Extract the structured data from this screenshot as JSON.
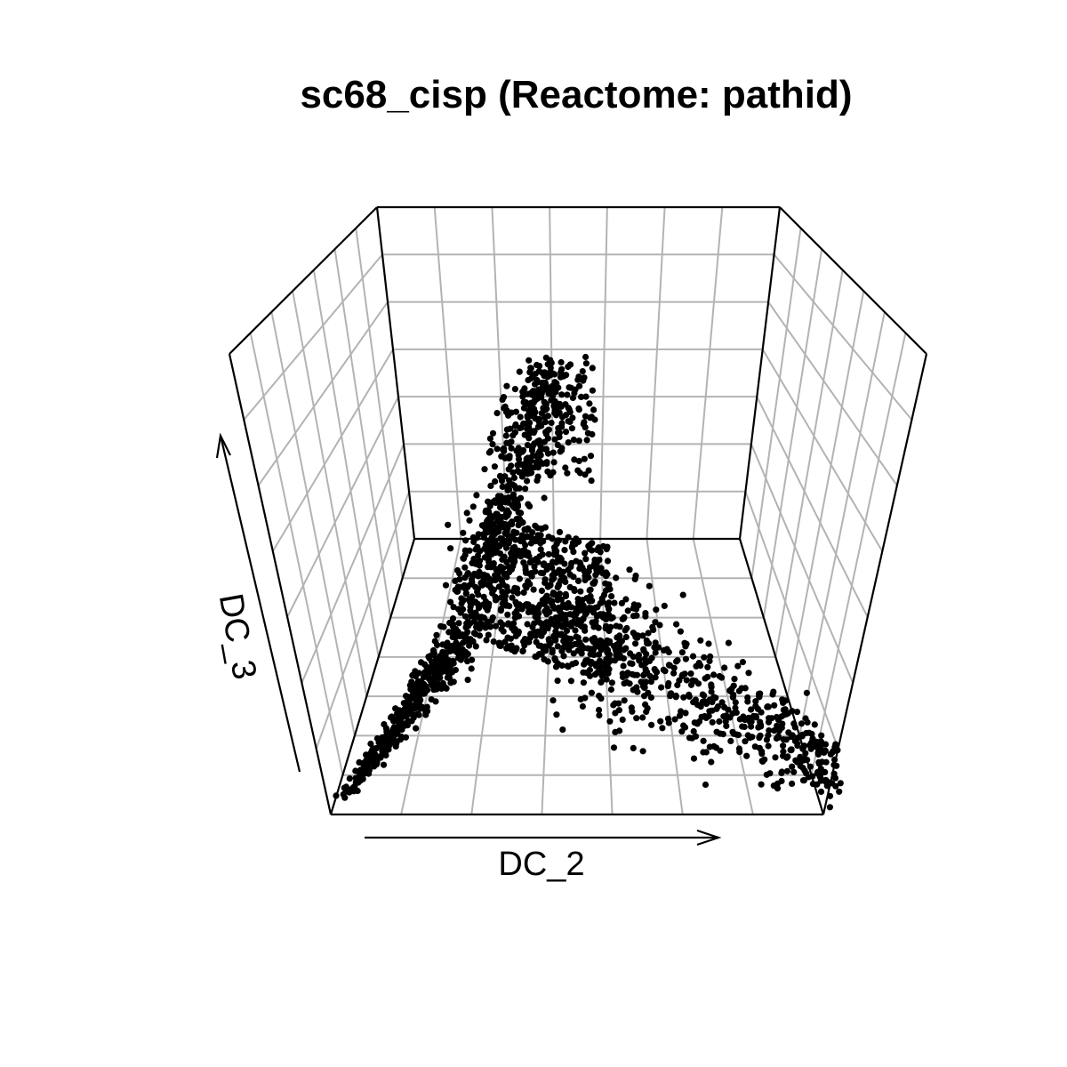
{
  "chart_data": {
    "type": "scatter",
    "projection": "3d-box",
    "title": "sc68_cisp (Reactome: pathid)",
    "xlabel": "DC_2",
    "ylabel": "DC_3",
    "grid": true,
    "point_color": "#000000",
    "grid_color": "#b3b3b3",
    "box_color": "#000000",
    "series": [
      {
        "name": "",
        "description": "Dense triangular point cloud: cells concentrate along a ridge from bottom-left rising to an upper tip, with a second arm trailing down to the lower right.",
        "points": [
          [
            0.0,
            0.02
          ],
          [
            0.02,
            0.03
          ],
          [
            0.04,
            0.05
          ],
          [
            0.06,
            0.07
          ],
          [
            0.08,
            0.09
          ],
          [
            0.1,
            0.11
          ],
          [
            0.12,
            0.13
          ],
          [
            0.14,
            0.15
          ],
          [
            0.16,
            0.17
          ],
          [
            0.18,
            0.2
          ],
          [
            0.2,
            0.23
          ],
          [
            0.22,
            0.26
          ],
          [
            0.24,
            0.3
          ],
          [
            0.26,
            0.34
          ],
          [
            0.28,
            0.38
          ],
          [
            0.3,
            0.44
          ],
          [
            0.32,
            0.5
          ],
          [
            0.34,
            0.58
          ],
          [
            0.36,
            0.66
          ],
          [
            0.38,
            0.76
          ],
          [
            0.4,
            0.86
          ],
          [
            0.42,
            0.94
          ],
          [
            0.43,
            0.99
          ],
          [
            0.45,
            0.55
          ],
          [
            0.5,
            0.5
          ],
          [
            0.55,
            0.48
          ],
          [
            0.6,
            0.44
          ],
          [
            0.65,
            0.4
          ],
          [
            0.7,
            0.36
          ],
          [
            0.75,
            0.32
          ],
          [
            0.8,
            0.28
          ],
          [
            0.85,
            0.24
          ],
          [
            0.9,
            0.2
          ],
          [
            0.95,
            0.16
          ],
          [
            1.0,
            0.12
          ]
        ]
      }
    ]
  }
}
